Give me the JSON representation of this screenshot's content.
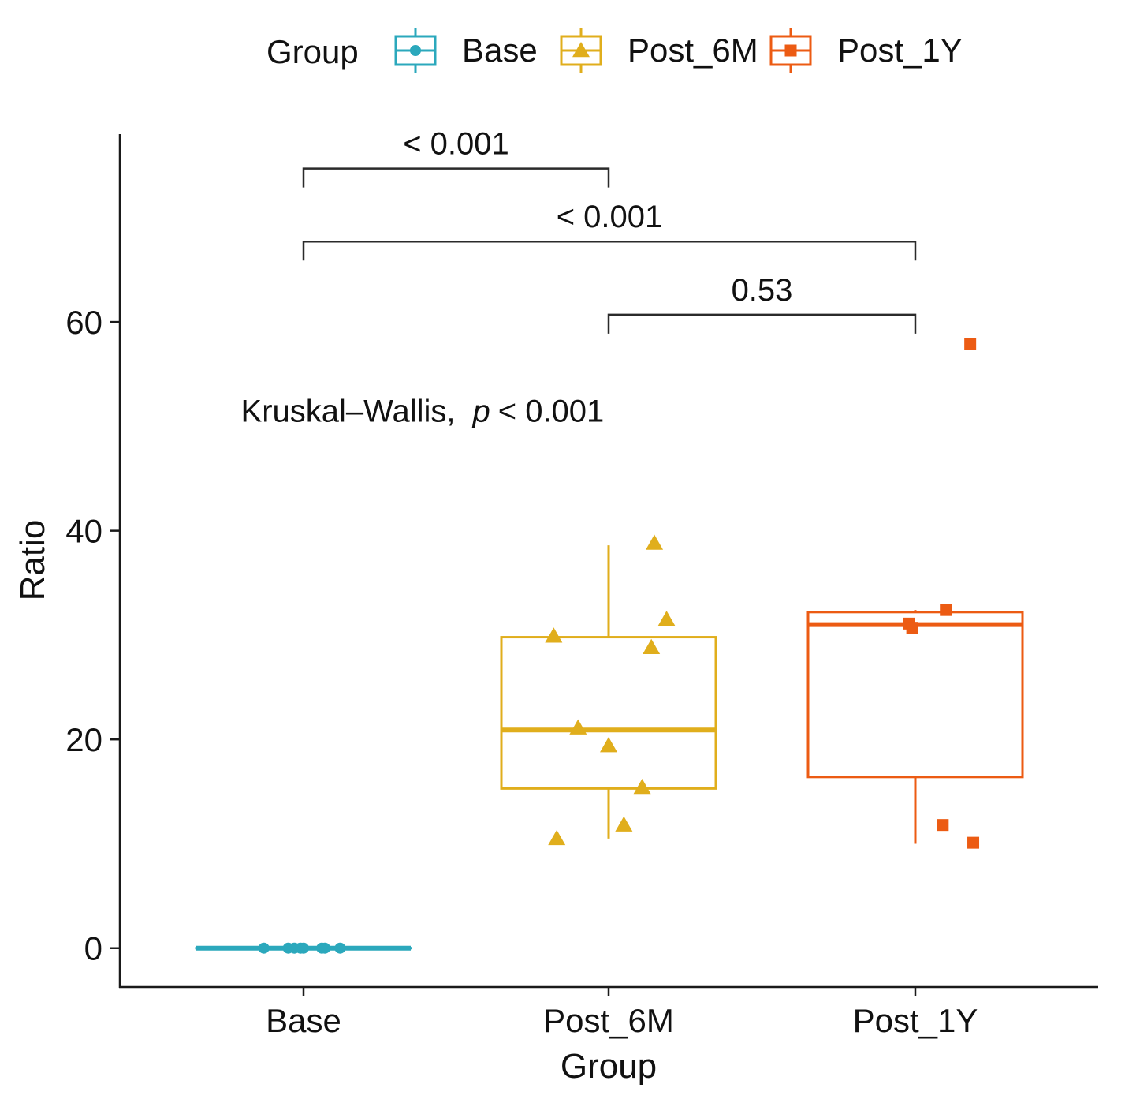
{
  "chart_data": {
    "type": "boxplot",
    "title": "",
    "xlabel": "Group",
    "ylabel": "Ratio",
    "ylim": [
      -3.8,
      78
    ],
    "yticks": [
      0,
      20,
      40,
      60
    ],
    "grid": false,
    "legend": {
      "title": "Group",
      "placement": "top",
      "entries": [
        {
          "label": "Base",
          "color": "#2BA8BC",
          "marker": "circle"
        },
        {
          "label": "Post_6M",
          "color": "#E0AE1C",
          "marker": "triangle"
        },
        {
          "label": "Post_1Y",
          "color": "#EC5B13",
          "marker": "square"
        }
      ]
    },
    "categories": [
      "Base",
      "Post_6M",
      "Post_1Y"
    ],
    "groups": [
      {
        "name": "Base",
        "color": "#2BA8BC",
        "marker": "circle",
        "box": {
          "q1": 0,
          "median": 0,
          "q3": 0,
          "whisker_low": 0,
          "whisker_high": 0
        },
        "points": [
          {
            "jitter": -0.13,
            "y": 0
          },
          {
            "jitter": -0.05,
            "y": 0
          },
          {
            "jitter": -0.03,
            "y": 0
          },
          {
            "jitter": -0.01,
            "y": 0
          },
          {
            "jitter": 0.0,
            "y": 0
          },
          {
            "jitter": 0.06,
            "y": 0
          },
          {
            "jitter": 0.07,
            "y": 0
          },
          {
            "jitter": 0.12,
            "y": 0
          }
        ]
      },
      {
        "name": "Post_6M",
        "color": "#E0AE1C",
        "marker": "triangle",
        "box": {
          "q1": 15.3,
          "median": 20.9,
          "q3": 29.8,
          "whisker_low": 10.5,
          "whisker_high": 38.6
        },
        "points": [
          {
            "jitter": -0.18,
            "y": 29.9
          },
          {
            "jitter": -0.1,
            "y": 21.1
          },
          {
            "jitter": 0.0,
            "y": 19.4
          },
          {
            "jitter": 0.05,
            "y": 11.8
          },
          {
            "jitter": 0.11,
            "y": 15.4
          },
          {
            "jitter": -0.17,
            "y": 10.5
          },
          {
            "jitter": 0.14,
            "y": 28.8
          },
          {
            "jitter": 0.15,
            "y": 38.8
          },
          {
            "jitter": 0.19,
            "y": 31.5
          }
        ]
      },
      {
        "name": "Post_1Y",
        "color": "#EC5B13",
        "marker": "square",
        "box": {
          "q1": 16.4,
          "median": 31.0,
          "q3": 32.2,
          "whisker_low": 10.0,
          "whisker_high": 32.4
        },
        "points": [
          {
            "jitter": -0.02,
            "y": 31.1
          },
          {
            "jitter": -0.01,
            "y": 30.7
          },
          {
            "jitter": 0.1,
            "y": 32.4
          },
          {
            "jitter": 0.09,
            "y": 11.8
          },
          {
            "jitter": 0.19,
            "y": 10.1
          },
          {
            "jitter": 0.18,
            "y": 57.9
          }
        ]
      }
    ],
    "comparisons": [
      {
        "from": "Base",
        "to": "Post_6M",
        "y": 74.7,
        "label": "< 0.001"
      },
      {
        "from": "Base",
        "to": "Post_1Y",
        "y": 67.7,
        "label": "< 0.001"
      },
      {
        "from": "Post_6M",
        "to": "Post_1Y",
        "y": 60.7,
        "label": "0.53"
      }
    ],
    "annotation": {
      "test": "Kruskal–Wallis,",
      "p_symbol": "p",
      "p_text": "< 0.001",
      "x_center": 1.39,
      "y": 51.5
    }
  }
}
